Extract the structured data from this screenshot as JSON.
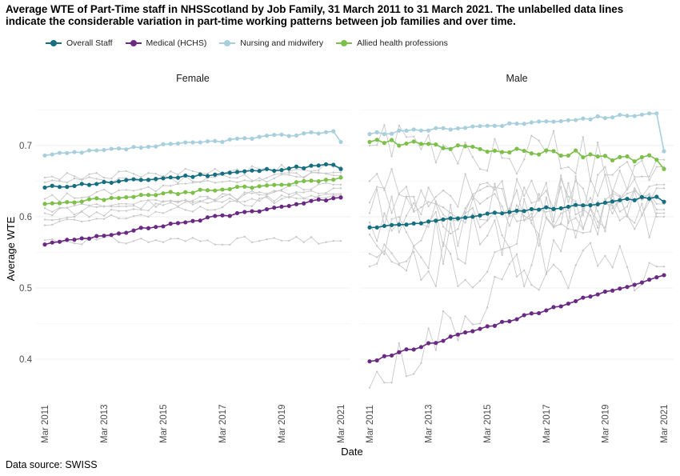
{
  "title_line1": "Average WTE of Part-Time staff in NHSScotland by Job Family, 31 March 2011 to 31 March 2021. The unlabelled data lines",
  "title_line2": "indicate the considerable variation in part-time working patterns between job families and over time.",
  "source": "Data source: SWISS",
  "colors": {
    "overall": "#156f80",
    "medical": "#6a2a84",
    "nursing": "#a7cfdc",
    "allied": "#7cbf49",
    "other": "#c8c8c8"
  },
  "chart_data": {
    "type": "line",
    "xlabel": "Date",
    "ylabel": "Average WTE",
    "ylim": [
      0.345,
      0.765
    ],
    "y_ticks": [
      "0.4",
      "0.5",
      "0.6",
      "0.7"
    ],
    "x_ticks": [
      "Mar 2011",
      "Mar 2013",
      "Mar 2015",
      "Mar 2017",
      "Mar 2019",
      "Mar 2021"
    ],
    "grid": true,
    "legend_position": "top-left",
    "series_names": [
      "Overall Staff",
      "Medical (HCHS)",
      "Nursing and midwifery",
      "Allied health professions"
    ],
    "panels": [
      {
        "name": "Female",
        "series": [
          {
            "name": "Overall Staff",
            "start": 0.641,
            "end": 0.673,
            "last": 0.667
          },
          {
            "name": "Medical (HCHS)",
            "start": 0.561,
            "end": 0.626,
            "last": 0.627
          },
          {
            "name": "Nursing and midwifery",
            "start": 0.686,
            "end": 0.72,
            "last": 0.705
          },
          {
            "name": "Allied health professions",
            "start": 0.618,
            "end": 0.652,
            "last": 0.655
          }
        ],
        "other_lines": [
          {
            "start": 0.567,
            "end": 0.566
          },
          {
            "start": 0.588,
            "end": 0.632
          },
          {
            "start": 0.596,
            "end": 0.645
          },
          {
            "start": 0.605,
            "end": 0.64
          },
          {
            "start": 0.612,
            "end": 0.63
          },
          {
            "start": 0.625,
            "end": 0.662
          },
          {
            "start": 0.648,
            "end": 0.658
          },
          {
            "start": 0.655,
            "end": 0.67
          }
        ]
      },
      {
        "name": "Male",
        "series": [
          {
            "name": "Overall Staff",
            "start": 0.585,
            "end": 0.628,
            "last": 0.621
          },
          {
            "name": "Medical (HCHS)",
            "start": 0.397,
            "end": 0.515,
            "last": 0.518
          },
          {
            "name": "Nursing and midwifery",
            "start": 0.716,
            "end": 0.745,
            "last": 0.692
          },
          {
            "name": "Allied health professions",
            "start": 0.705,
            "end": 0.68,
            "last": 0.667
          }
        ],
        "other_lines": [
          {
            "start": 0.36,
            "end": 0.67
          },
          {
            "start": 0.53,
            "end": 0.53
          },
          {
            "start": 0.548,
            "end": 0.61
          },
          {
            "start": 0.575,
            "end": 0.605
          },
          {
            "start": 0.592,
            "end": 0.64
          },
          {
            "start": 0.605,
            "end": 0.645
          },
          {
            "start": 0.62,
            "end": 0.618
          },
          {
            "start": 0.65,
            "end": 0.6
          },
          {
            "start": 0.7,
            "end": 0.68
          }
        ]
      }
    ]
  }
}
